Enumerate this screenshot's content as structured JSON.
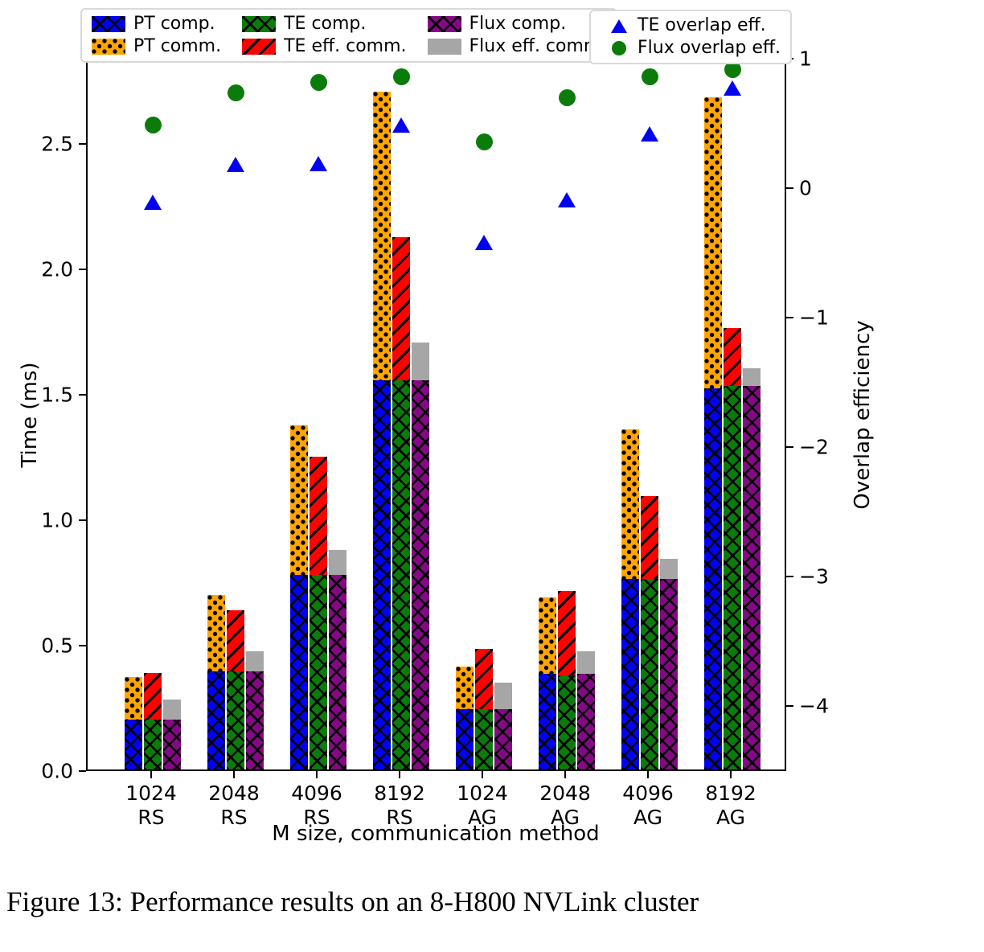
{
  "caption": "Figure 13: Performance results on an 8-H800 NVLink cluster",
  "chart_data": {
    "type": "bar",
    "subtype": "grouped-stacked bars with scatter overlay on secondary axis",
    "title": "",
    "xlabel": "M size, communication method",
    "ylabel": "Time (ms)",
    "ylabel_right": "Overlap efficiency",
    "categories": [
      "1024 RS",
      "2048 RS",
      "4096 RS",
      "8192 RS",
      "1024 AG",
      "2048 AG",
      "4096 AG",
      "8192 AG"
    ],
    "ylim_left": [
      0,
      2.84
    ],
    "yticks_left": [
      0.0,
      0.5,
      1.0,
      1.5,
      2.0,
      2.5
    ],
    "ylim_right": [
      -4.5,
      1.0
    ],
    "yticks_right": [
      1,
      0,
      -1,
      -2,
      -3,
      -4
    ],
    "grid": false,
    "legend_position": "top",
    "bar_stacks": [
      {
        "name": "PT",
        "comp": {
          "label": "PT comp.",
          "color": "#0103EE",
          "hatch": "xx",
          "values": [
            0.2,
            0.39,
            0.775,
            1.55,
            0.24,
            0.38,
            0.76,
            1.52
          ]
        },
        "comm": {
          "label": "PT comm.",
          "color": "#FFA500",
          "hatch": "dots",
          "values": [
            0.17,
            0.305,
            0.595,
            1.15,
            0.17,
            0.305,
            0.595,
            1.16
          ]
        }
      },
      {
        "name": "TE",
        "comp": {
          "label": "TE comp.",
          "color": "#0B7C0B",
          "hatch": "xx",
          "values": [
            0.2,
            0.39,
            0.775,
            1.55,
            0.24,
            0.375,
            0.76,
            1.53
          ]
        },
        "comm": {
          "label": "TE eff. comm.",
          "color": "#FA0400",
          "hatch": "slash",
          "values": [
            0.185,
            0.245,
            0.47,
            0.57,
            0.24,
            0.335,
            0.33,
            0.23
          ]
        }
      },
      {
        "name": "Flux",
        "comp": {
          "label": "Flux comp.",
          "color": "#840984",
          "hatch": "xx",
          "values": [
            0.2,
            0.39,
            0.775,
            1.55,
            0.24,
            0.38,
            0.76,
            1.53
          ]
        },
        "comm": {
          "label": "Flux eff. comm.",
          "color": "#A6A6A6",
          "hatch": "none",
          "values": [
            0.08,
            0.08,
            0.1,
            0.15,
            0.105,
            0.09,
            0.08,
            0.07
          ]
        }
      }
    ],
    "scatter_series": [
      {
        "label": "TE overlap eff.",
        "marker": "triangle",
        "color": "#0103EE",
        "values": [
          -0.1,
          0.19,
          0.2,
          0.5,
          -0.41,
          -0.08,
          0.43,
          0.78
        ]
      },
      {
        "label": "Flux overlap eff.",
        "marker": "circle",
        "color": "#0B7C0B",
        "values": [
          0.5,
          0.75,
          0.83,
          0.87,
          0.37,
          0.71,
          0.87,
          0.93
        ]
      }
    ]
  }
}
